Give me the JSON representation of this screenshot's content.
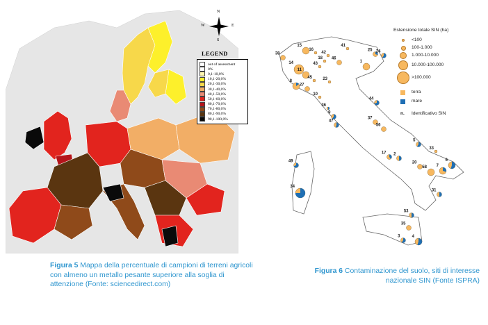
{
  "left_map": {
    "compass": {
      "n": "N",
      "s": "S",
      "e": "E",
      "w": "W"
    },
    "legend": {
      "title": "LEGEND",
      "items": [
        {
          "label": "out of assessment",
          "color": "#ffffff"
        },
        {
          "label": "0%",
          "color": "#ffffff"
        },
        {
          "label": "0,1-10,0%",
          "color": "#fff7b0"
        },
        {
          "label": "10,1-20,0%",
          "color": "#fdf02b"
        },
        {
          "label": "20,1-30,0%",
          "color": "#f7d84a"
        },
        {
          "label": "30,1-40,0%",
          "color": "#f2ae66"
        },
        {
          "label": "40,1-50,0%",
          "color": "#e98a74"
        },
        {
          "label": "50,1-60,0%",
          "color": "#e2241e"
        },
        {
          "label": "60,1-70,0%",
          "color": "#b5141a"
        },
        {
          "label": "70,1-80,0%",
          "color": "#8f4a1a"
        },
        {
          "label": "80,1-90,0%",
          "color": "#5a3510"
        },
        {
          "label": "90,1-100,0%",
          "color": "#0a0a0a"
        }
      ]
    }
  },
  "right_map": {
    "legend": {
      "title": "Estensione totale SIN (ha)",
      "sizes": [
        "<100",
        "100-1.000",
        "1.000-10.000",
        "10.000-100.000",
        ">100.000"
      ],
      "terra": "terra",
      "mare": "mare",
      "id_label": "Identificativo SIN",
      "id_symbol": "n.",
      "color_terra": "#f7b85f",
      "color_mare": "#1f6fb4"
    },
    "sites": [
      {
        "id": "15",
        "size": 3,
        "mare": 0
      },
      {
        "id": "16",
        "size": 1,
        "mare": 0
      },
      {
        "id": "42",
        "size": 1,
        "mare": 0
      },
      {
        "id": "41",
        "size": 1,
        "mare": 0
      },
      {
        "id": "25",
        "size": 2,
        "mare": 0.3
      },
      {
        "id": "24",
        "size": 2,
        "mare": 0.6
      },
      {
        "id": "38",
        "size": 2,
        "mare": 0
      },
      {
        "id": "18",
        "size": 1,
        "mare": 0
      },
      {
        "id": "43",
        "size": 1,
        "mare": 0
      },
      {
        "id": "46",
        "size": 2,
        "mare": 0
      },
      {
        "id": "14",
        "size": 4,
        "mare": 0
      },
      {
        "id": "11",
        "size": 3,
        "mare": 0
      },
      {
        "id": "1",
        "size": 3,
        "mare": 0
      },
      {
        "id": "45",
        "size": 1,
        "mare": 0
      },
      {
        "id": "23",
        "size": 1,
        "mare": 0
      },
      {
        "id": "8",
        "size": 3,
        "mare": 0.15
      },
      {
        "id": "27",
        "size": 2,
        "mare": 0
      },
      {
        "id": "10",
        "size": 1,
        "mare": 0
      },
      {
        "id": "44",
        "size": 2,
        "mare": 0.7
      },
      {
        "id": "36",
        "size": 1,
        "mare": 0.5
      },
      {
        "id": "9",
        "size": 2,
        "mare": 0.6
      },
      {
        "id": "37",
        "size": 2,
        "mare": 0
      },
      {
        "id": "56",
        "size": 2,
        "mare": 0
      },
      {
        "id": "47",
        "size": 2,
        "mare": 0.55
      },
      {
        "id": "5",
        "size": 2,
        "mare": 0.6
      },
      {
        "id": "33",
        "size": 1,
        "mare": 0
      },
      {
        "id": "49",
        "size": 2,
        "mare": 0.7
      },
      {
        "id": "17",
        "size": 2,
        "mare": 0.4
      },
      {
        "id": "2",
        "size": 2,
        "mare": 0.5
      },
      {
        "id": "20",
        "size": 2,
        "mare": 0
      },
      {
        "id": "6",
        "size": 3,
        "mare": 0.55
      },
      {
        "id": "58",
        "size": 3,
        "mare": 0
      },
      {
        "id": "7",
        "size": 3,
        "mare": 0.3
      },
      {
        "id": "34",
        "size": 4,
        "mare": 0.75
      },
      {
        "id": "31",
        "size": 2,
        "mare": 0.5
      },
      {
        "id": "53",
        "size": 2,
        "mare": 0.5
      },
      {
        "id": "35",
        "size": 2,
        "mare": 0
      },
      {
        "id": "3",
        "size": 2,
        "mare": 0.6
      },
      {
        "id": "4",
        "size": 3,
        "mare": 0.55
      }
    ]
  },
  "captions": {
    "fig5_label": "Figura 5",
    "fig5_text": " Mappa della percentuale di campioni di terreni agricoli con almeno un metallo pesante superiore alla soglia di attenzione (Fonte: sciencedirect.com)",
    "fig6_label": "Figura 6",
    "fig6_text": " Contaminazione del suolo, siti di interesse nazionale SIN (Fonte ISPRA)"
  }
}
